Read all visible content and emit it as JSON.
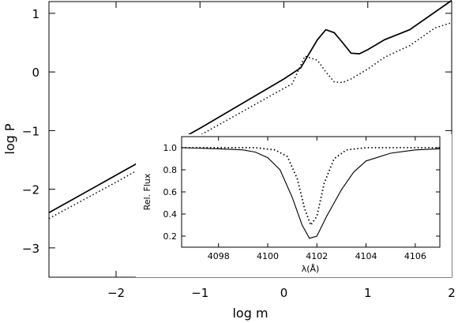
{
  "chart_data": [
    {
      "type": "line",
      "title": "",
      "xlabel": "log m",
      "ylabel": "log P",
      "xlim": [
        -2.8,
        2.0
      ],
      "ylim": [
        -3.5,
        1.2
      ],
      "xticks": [
        -2,
        -1,
        0,
        1,
        2
      ],
      "xtick_labels": [
        "−2",
        "−1",
        "0",
        "1",
        "2"
      ],
      "yticks": [
        -3,
        -2,
        -1,
        0,
        1
      ],
      "ytick_labels": [
        "−3",
        "−2",
        "−1",
        "0",
        "1"
      ],
      "grid": false,
      "series": [
        {
          "style": "solid",
          "x": [
            -2.8,
            -2.0,
            -1.0,
            0.0,
            0.2,
            0.4,
            0.5,
            0.6,
            0.7,
            0.8,
            0.9,
            1.0,
            1.2,
            1.5,
            2.0
          ],
          "y": [
            -2.4,
            -1.76,
            -0.96,
            -0.12,
            0.07,
            0.55,
            0.72,
            0.67,
            0.5,
            0.32,
            0.31,
            0.38,
            0.55,
            0.72,
            1.22
          ]
        },
        {
          "style": "dotted",
          "x": [
            -2.8,
            -2.0,
            -1.0,
            0.0,
            0.1,
            0.25,
            0.4,
            0.5,
            0.6,
            0.7,
            0.8,
            1.0,
            1.2,
            1.5,
            1.8,
            2.0
          ],
          "y": [
            -2.5,
            -1.88,
            -1.08,
            -0.28,
            -0.2,
            0.27,
            0.2,
            0.0,
            -0.17,
            -0.18,
            -0.12,
            0.05,
            0.25,
            0.45,
            0.75,
            0.84
          ]
        }
      ]
    },
    {
      "type": "line",
      "title": "",
      "xlabel": "λ(Å)",
      "ylabel": "Rel. Flux",
      "xlim": [
        4096.5,
        4107.0
      ],
      "ylim": [
        0.1,
        1.1
      ],
      "xticks": [
        4098,
        4100,
        4102,
        4104,
        4106
      ],
      "xtick_labels": [
        "4098",
        "4100",
        "4102",
        "4104",
        "4106"
      ],
      "yticks": [
        0.2,
        0.4,
        0.6,
        0.8,
        1.0
      ],
      "ytick_labels": [
        "0.2",
        "0.4",
        "0.6",
        "0.8",
        "1.0"
      ],
      "grid": false,
      "series": [
        {
          "style": "solid",
          "x": [
            4096.5,
            4098.0,
            4099.0,
            4099.5,
            4100.0,
            4100.5,
            4101.0,
            4101.4,
            4101.7,
            4102.0,
            4102.4,
            4103.0,
            4103.5,
            4104.0,
            4105.0,
            4106.0,
            4107.0
          ],
          "y": [
            1.0,
            0.99,
            0.98,
            0.96,
            0.91,
            0.8,
            0.55,
            0.3,
            0.18,
            0.2,
            0.38,
            0.62,
            0.78,
            0.88,
            0.95,
            0.98,
            0.99
          ]
        },
        {
          "style": "dotted",
          "x": [
            4096.5,
            4098.0,
            4099.5,
            4100.3,
            4100.8,
            4101.2,
            4101.5,
            4101.75,
            4102.0,
            4102.3,
            4102.7,
            4103.2,
            4104.0,
            4105.5,
            4107.0
          ],
          "y": [
            1.0,
            1.0,
            1.0,
            0.98,
            0.92,
            0.72,
            0.45,
            0.3,
            0.38,
            0.68,
            0.9,
            0.98,
            1.0,
            1.0,
            1.0
          ]
        }
      ]
    }
  ]
}
